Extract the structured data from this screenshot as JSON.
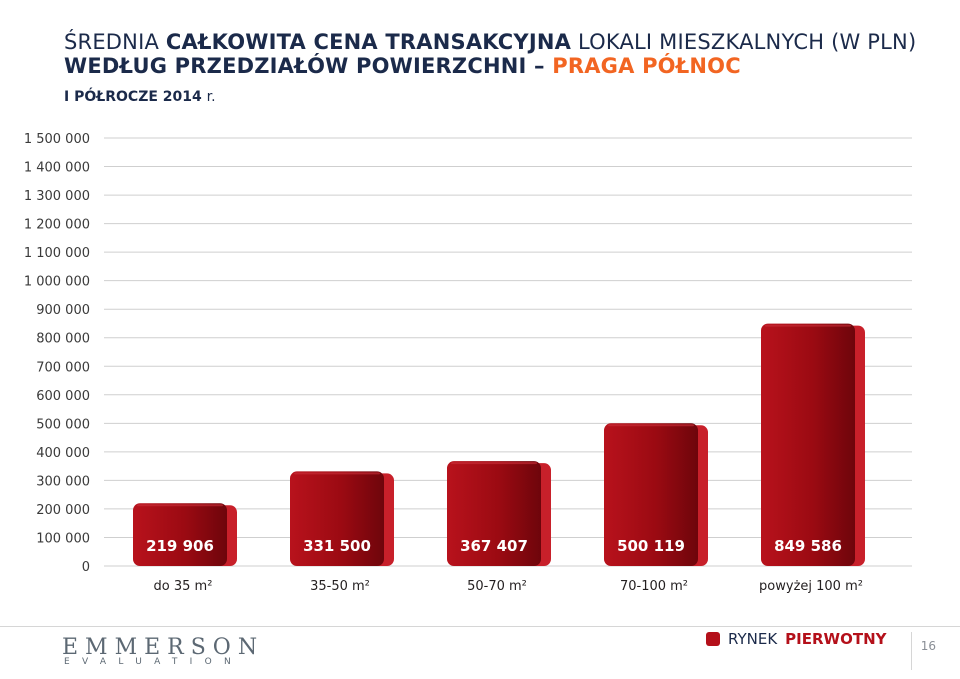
{
  "header": {
    "title_line1_part1": "Średnia",
    "title_line1_part2": "całkowita cena transakcyjna",
    "title_line1_part3": "lokali mieszkalnych (w pln)",
    "title_line2_part1": "według przedziałów powierzchni –",
    "title_line2_accent": "praga północ",
    "period_main": "I PÓŁROCZE 2014",
    "period_suffix": "r."
  },
  "colors": {
    "bar": "#9b0a12",
    "bar_shadow": "#c8202a",
    "accent": "#f26522",
    "title": "#1b2a4a",
    "grid": "#cfcfcf"
  },
  "chart_data": {
    "type": "bar",
    "categories": [
      "do 35 m²",
      "35-50 m²",
      "50-70 m²",
      "70-100 m²",
      "powyżej 100 m²"
    ],
    "values": [
      219906,
      331500,
      367407,
      500119,
      849586
    ],
    "value_labels": [
      "219 906",
      "331 500",
      "367 407",
      "500 119",
      "849 586"
    ],
    "ylim": [
      0,
      1500000
    ],
    "yticks": [
      0,
      100000,
      200000,
      300000,
      400000,
      500000,
      600000,
      700000,
      800000,
      900000,
      1000000,
      1100000,
      1200000,
      1300000,
      1400000,
      1500000
    ],
    "ytick_labels": [
      "0",
      "100 000",
      "200 000",
      "300 000",
      "400 000",
      "500 000",
      "600 000",
      "700 000",
      "800 000",
      "900 000",
      "1 000 000",
      "1 100 000",
      "1 200 000",
      "1 300 000",
      "1 400 000",
      "1 500 000"
    ],
    "grid": true,
    "title": "",
    "xlabel": "",
    "ylabel": ""
  },
  "footer": {
    "logo_main": "EMMERSON",
    "logo_sub": "EVALUATION",
    "market_label": "RYNEK",
    "market_strong": "PIERWOTNY",
    "page_number": "16"
  }
}
